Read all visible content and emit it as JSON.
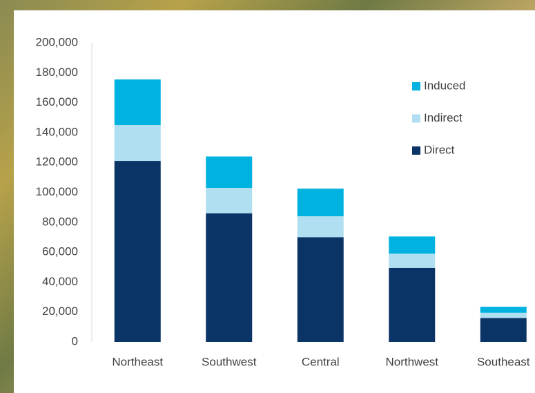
{
  "chart_data": {
    "type": "stacked-bar",
    "categories": [
      "Northeast",
      "Southwest",
      "Central",
      "Northwest",
      "Southeast"
    ],
    "series": [
      {
        "name": "Direct",
        "color": "#0b3466",
        "values": [
          121000,
          86000,
          70000,
          49500,
          16000
        ]
      },
      {
        "name": "Indirect",
        "color": "#afdff0",
        "values": [
          24000,
          17000,
          14000,
          9500,
          3500
        ]
      },
      {
        "name": "Induced",
        "color": "#00b2e0",
        "values": [
          30500,
          21000,
          18500,
          11500,
          4000
        ]
      }
    ],
    "ylim": [
      0,
      200000
    ],
    "yticks": [
      0,
      {
        "value": 20000,
        "label": "20,000"
      },
      {
        "value": 40000,
        "label": "40,000"
      },
      {
        "value": 60000,
        "label": "60,000"
      },
      {
        "value": 80000,
        "label": "80,000"
      },
      {
        "value": 100000,
        "label": "100,000"
      },
      {
        "value": 120000,
        "label": "120,000"
      },
      {
        "value": 140000,
        "label": "140,000"
      },
      {
        "value": 160000,
        "label": "160,000"
      },
      {
        "value": 180000,
        "label": "180,000"
      },
      {
        "value": 200000,
        "label": "200,000"
      }
    ],
    "grid": false,
    "legend": "upper-right"
  }
}
